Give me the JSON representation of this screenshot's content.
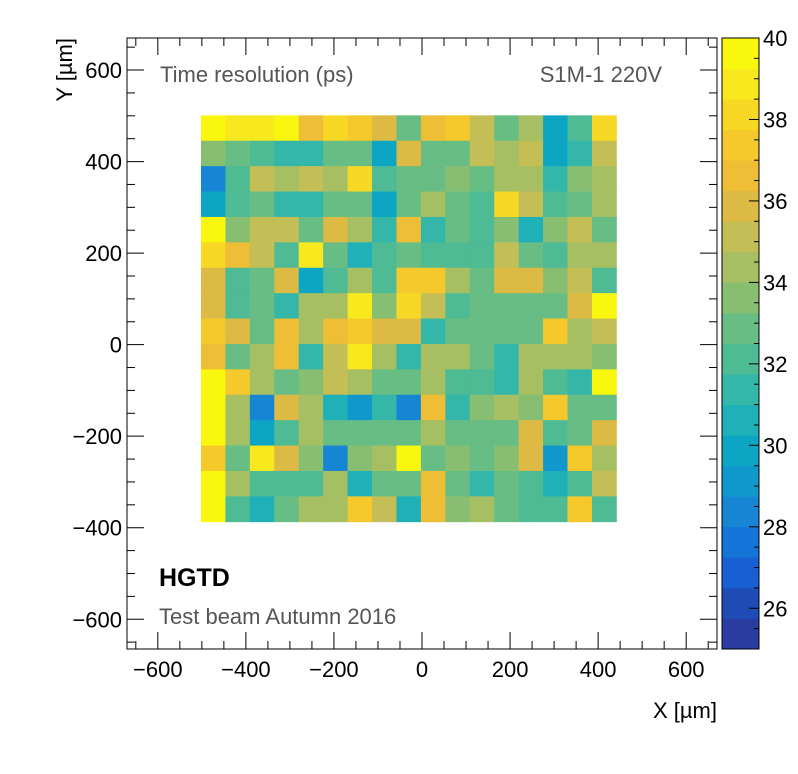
{
  "chart_data": {
    "type": "heatmap",
    "title": "Time resolution (ps)",
    "sensor_label": "S1M-1 220V",
    "experiment": "HGTD",
    "campaign": "Test beam Autumn 2016",
    "xlabel": "X [µm]",
    "ylabel": "Y [µm]",
    "xlim": [
      -670,
      670
    ],
    "ylim": [
      -665,
      670
    ],
    "x_ticks": [
      -600,
      -400,
      -200,
      0,
      200,
      400,
      600
    ],
    "y_ticks": [
      -600,
      -400,
      -200,
      0,
      200,
      400,
      600
    ],
    "x_tick_labels": [
      "−600",
      "−400",
      "−200",
      "0",
      "200",
      "400",
      "600"
    ],
    "y_tick_labels": [
      "−600",
      "−400",
      "−200",
      "0",
      "200",
      "400",
      "600"
    ],
    "x_bin_edges_start": -502,
    "y_bin_edges_start": -387,
    "bin_width_x": 55.5,
    "bin_width_y": 55.5,
    "z_range": [
      25,
      40
    ],
    "colorbar_ticks": [
      26,
      28,
      30,
      32,
      34,
      36,
      38,
      40
    ],
    "colorbar_tick_labels": [
      "26",
      "28",
      "30",
      "32",
      "34",
      "36",
      "38",
      "40"
    ],
    "palette": [
      "#2a3c9f",
      "#1e4bb4",
      "#175fd2",
      "#1574d8",
      "#1686d4",
      "#1098cc",
      "#0ca6c4",
      "#20b0b7",
      "#34b7a8",
      "#4ebb95",
      "#68bd84",
      "#88be72",
      "#a6bf63",
      "#c3be56",
      "#dcba44",
      "#eebe36",
      "#f5c92b",
      "#f7d824",
      "#f8e81e",
      "#f9f70e"
    ],
    "values_rows_top_to_bottom": [
      [
        39.5,
        38.5,
        38.5,
        39.5,
        36.5,
        38.0,
        37.5,
        35.5,
        32.5,
        36.5,
        37.5,
        35.0,
        33.0,
        34.5,
        29.5,
        32.0,
        38.0
      ],
      [
        33.5,
        32.5,
        32.0,
        31.5,
        31.5,
        33.0,
        33.0,
        30.0,
        36.0,
        33.0,
        33.0,
        35.0,
        34.0,
        35.0,
        29.5,
        31.5,
        35.0
      ],
      [
        28.0,
        32.0,
        35.0,
        34.0,
        35.0,
        34.0,
        38.0,
        32.0,
        33.0,
        33.0,
        33.5,
        33.0,
        34.0,
        34.0,
        31.0,
        33.5,
        34.0
      ],
      [
        30.0,
        32.0,
        33.0,
        31.0,
        31.0,
        33.0,
        33.0,
        30.0,
        33.0,
        34.0,
        33.0,
        32.0,
        38.0,
        35.0,
        32.0,
        33.0,
        34.0
      ],
      [
        39.5,
        33.5,
        35.0,
        35.0,
        32.5,
        36.0,
        34.5,
        31.5,
        36.5,
        31.0,
        33.0,
        32.0,
        33.5,
        30.5,
        33.5,
        35.0,
        33.0
      ],
      [
        38.0,
        36.5,
        35.0,
        32.0,
        38.5,
        33.0,
        30.5,
        32.0,
        33.0,
        32.0,
        32.0,
        32.0,
        35.0,
        33.0,
        32.0,
        34.0,
        34.0
      ],
      [
        35.5,
        32.0,
        33.0,
        35.5,
        29.5,
        32.0,
        34.0,
        32.0,
        37.5,
        37.0,
        34.0,
        33.0,
        35.5,
        35.5,
        33.5,
        35.0,
        32.0
      ],
      [
        35.5,
        32.0,
        33.0,
        31.5,
        34.0,
        34.0,
        38.5,
        33.5,
        38.0,
        35.0,
        32.0,
        33.0,
        32.5,
        32.5,
        32.5,
        35.5,
        39.5
      ],
      [
        37.5,
        35.5,
        33.0,
        36.5,
        34.5,
        36.5,
        37.0,
        36.0,
        35.5,
        31.5,
        33.0,
        33.0,
        33.0,
        33.0,
        37.5,
        34.5,
        35.0
      ],
      [
        36.5,
        33.0,
        34.0,
        36.5,
        31.0,
        35.0,
        38.5,
        34.0,
        31.5,
        34.5,
        34.0,
        32.5,
        31.5,
        34.0,
        34.0,
        34.0,
        33.5
      ],
      [
        39.5,
        37.0,
        34.0,
        33.0,
        33.5,
        35.0,
        34.0,
        33.0,
        33.0,
        34.0,
        32.0,
        32.0,
        31.5,
        34.5,
        32.0,
        31.0,
        40.0
      ],
      [
        39.5,
        34.0,
        28.0,
        35.5,
        34.5,
        30.5,
        29.0,
        31.5,
        28.5,
        36.5,
        31.0,
        33.5,
        34.0,
        33.5,
        37.5,
        33.0,
        33.0
      ],
      [
        39.5,
        34.0,
        30.0,
        32.0,
        34.5,
        33.0,
        33.0,
        33.0,
        32.5,
        34.0,
        33.0,
        32.5,
        32.5,
        35.5,
        32.0,
        33.0,
        35.5
      ],
      [
        37.0,
        32.5,
        38.5,
        36.0,
        33.5,
        28.5,
        33.5,
        34.0,
        40.0,
        32.5,
        33.5,
        32.5,
        33.5,
        35.5,
        29.0,
        37.5,
        34.0
      ],
      [
        39.5,
        34.0,
        32.0,
        32.0,
        32.0,
        34.0,
        30.5,
        33.0,
        33.0,
        36.5,
        33.0,
        31.0,
        33.0,
        32.0,
        30.5,
        32.0,
        35.0
      ],
      [
        39.5,
        32.0,
        30.5,
        33.0,
        34.0,
        34.5,
        37.0,
        35.0,
        30.5,
        36.5,
        33.5,
        34.5,
        33.0,
        32.0,
        32.0,
        37.0,
        32.0
      ]
    ]
  }
}
